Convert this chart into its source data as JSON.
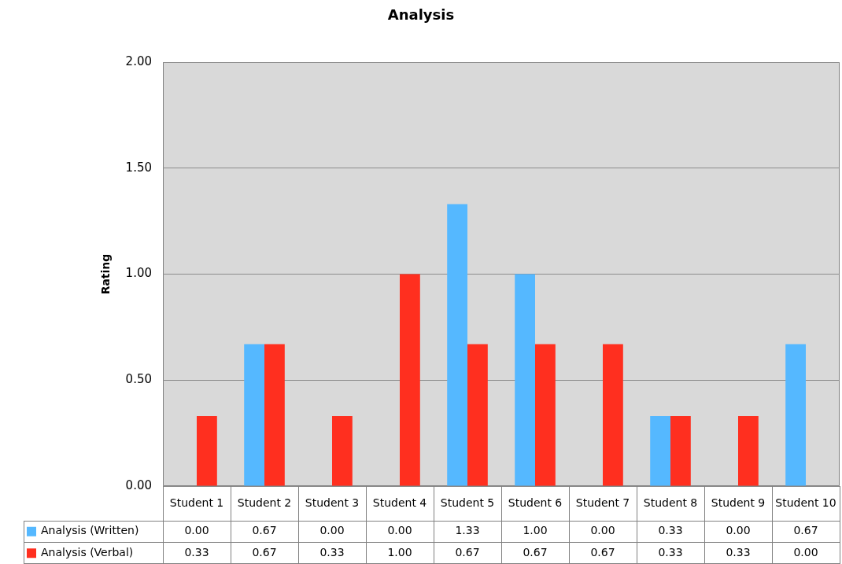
{
  "chart_data": {
    "type": "bar",
    "title": "Analysis",
    "ylabel": "Rating",
    "categories": [
      "Student 1",
      "Student 2",
      "Student 3",
      "Student 4",
      "Student 5",
      "Student 6",
      "Student 7",
      "Student 8",
      "Student 9",
      "Student 10"
    ],
    "series": [
      {
        "name": "Analysis (Written)",
        "color": "#55b8ff",
        "values": [
          0,
          0.67,
          0,
          0,
          1.33,
          1,
          0,
          0.33,
          0,
          0.67
        ],
        "value_labels": [
          "0.00",
          "0.67",
          "0.00",
          "0.00",
          "1.33",
          "1.00",
          "0.00",
          "0.33",
          "0.00",
          "0.67"
        ]
      },
      {
        "name": "Analysis (Verbal)",
        "color": "#ff2f1f",
        "values": [
          0.33,
          0.67,
          0.33,
          1,
          0.67,
          0.67,
          0.67,
          0.33,
          0.33,
          0
        ],
        "value_labels": [
          "0.33",
          "0.67",
          "0.33",
          "1.00",
          "0.67",
          "0.67",
          "0.67",
          "0.33",
          "0.33",
          "0.00"
        ]
      }
    ],
    "ylim": [
      0,
      2
    ],
    "yticks": [
      {
        "value": 0,
        "label": "0.00"
      },
      {
        "value": 0.5,
        "label": "0.50"
      },
      {
        "value": 1,
        "label": "1.00"
      },
      {
        "value": 1.5,
        "label": "1.50"
      },
      {
        "value": 2,
        "label": "2.00"
      }
    ],
    "grid": "y",
    "legend": "bottom"
  }
}
